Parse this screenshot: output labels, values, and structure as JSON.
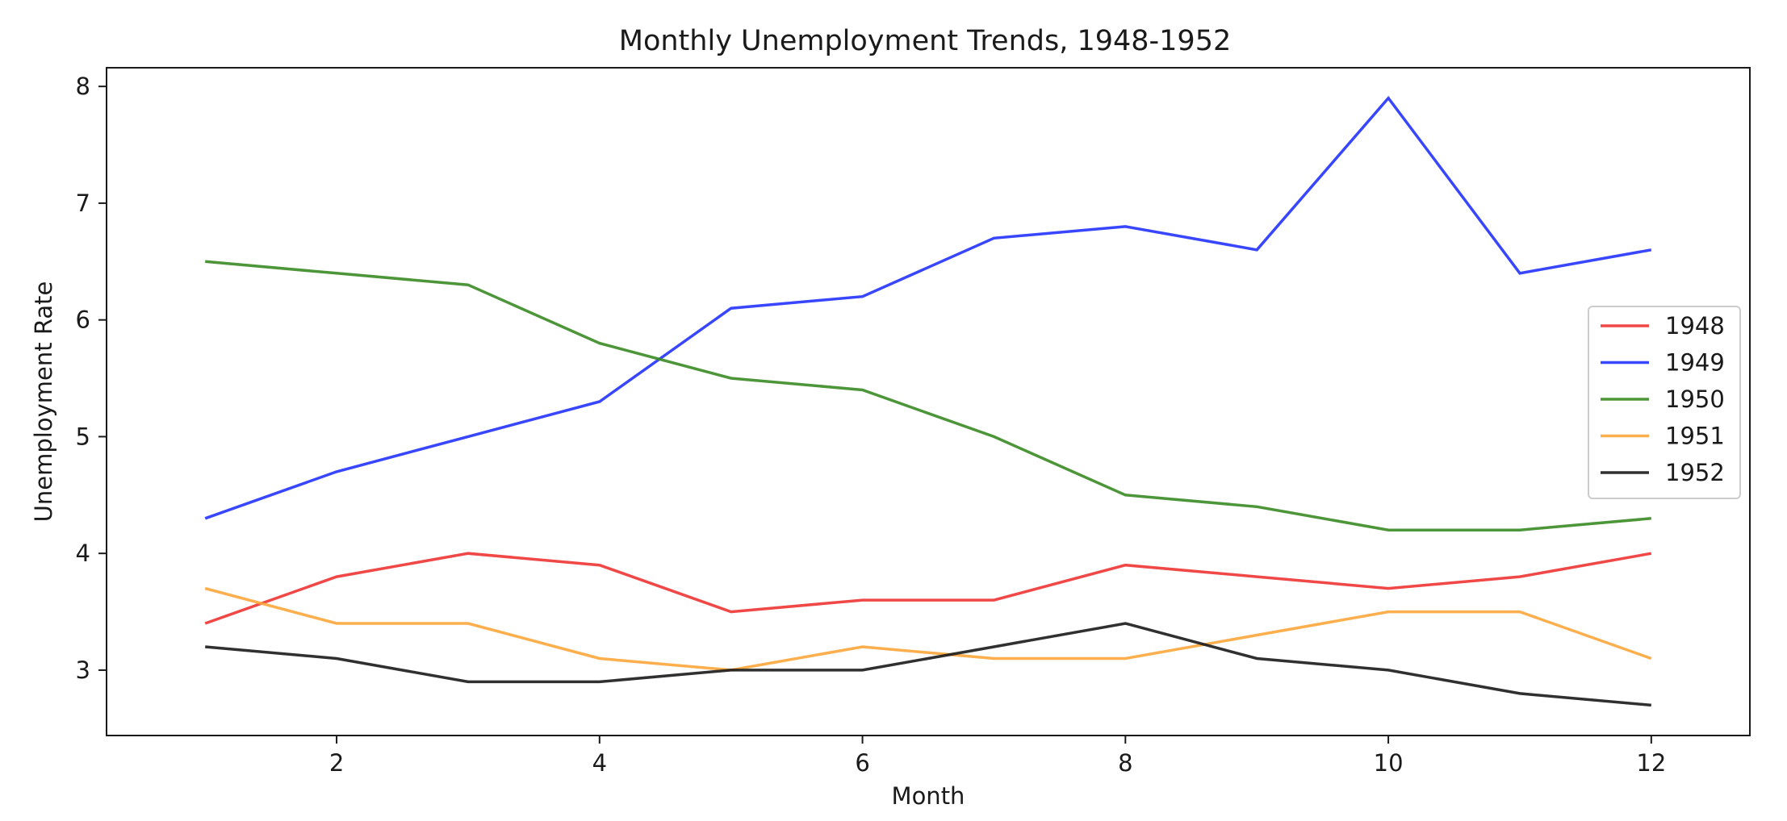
{
  "chart_data": {
    "type": "line",
    "title": "Monthly Unemployment Trends, 1948-1952",
    "xlabel": "Month",
    "ylabel": "Unemployment Rate",
    "xlim": [
      0.25,
      12.75
    ],
    "ylim": [
      2.44,
      8.16
    ],
    "xticks": [
      2,
      4,
      6,
      8,
      10,
      12
    ],
    "yticks": [
      3,
      4,
      5,
      6,
      7,
      8
    ],
    "grid": false,
    "legend_position": "center-right",
    "x": [
      1,
      2,
      3,
      4,
      5,
      6,
      7,
      8,
      9,
      10,
      11,
      12
    ],
    "series": [
      {
        "name": "1948",
        "color": "#ee3333",
        "values": [
          3.4,
          3.8,
          4.0,
          3.9,
          3.5,
          3.6,
          3.6,
          3.9,
          3.8,
          3.7,
          3.8,
          4.0
        ]
      },
      {
        "name": "1949",
        "color": "#2233ff",
        "values": [
          4.3,
          4.7,
          5.0,
          5.3,
          6.1,
          6.2,
          6.7,
          6.8,
          6.6,
          7.9,
          6.4,
          6.6
        ]
      },
      {
        "name": "1950",
        "color": "#3a8a24",
        "values": [
          6.5,
          6.4,
          6.3,
          5.8,
          5.5,
          5.4,
          5.0,
          4.5,
          4.4,
          4.2,
          4.2,
          4.3
        ]
      },
      {
        "name": "1951",
        "color": "#fda53a",
        "values": [
          3.7,
          3.4,
          3.4,
          3.1,
          3.0,
          3.2,
          3.1,
          3.1,
          3.3,
          3.5,
          3.5,
          3.1
        ]
      },
      {
        "name": "1952",
        "color": "#1a1a1a",
        "values": [
          3.2,
          3.1,
          2.9,
          2.9,
          3.0,
          3.0,
          3.2,
          3.4,
          3.1,
          3.0,
          2.8,
          2.7
        ]
      }
    ]
  }
}
